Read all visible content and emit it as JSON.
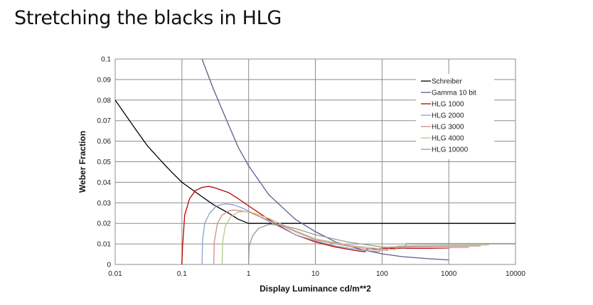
{
  "slide": {
    "title": "Stretching the blacks in HLG"
  },
  "chart_data": {
    "type": "line",
    "title": "",
    "xlabel": "Display Luminance cd/m**2",
    "ylabel": "Weber Fraction",
    "x_scale": "log",
    "xlim": [
      0.01,
      10000
    ],
    "ylim": [
      0,
      0.1
    ],
    "x_ticks": [
      0.01,
      0.1,
      1,
      10,
      100,
      1000,
      10000
    ],
    "x_tick_labels": [
      "0.01",
      "0.1",
      "1",
      "10",
      "100",
      "1000",
      "10000"
    ],
    "y_ticks": [
      0,
      0.01,
      0.02,
      0.03,
      0.04,
      0.05,
      0.06,
      0.07,
      0.08,
      0.09,
      0.1
    ],
    "y_tick_labels": [
      "0",
      "0.01",
      "0.02",
      "0.03",
      "0.04",
      "0.05",
      "0.06",
      "0.07",
      "0.08",
      "0.09",
      "0.1"
    ],
    "grid": true,
    "legend_position": "top-right",
    "series": [
      {
        "name": "Schreiber",
        "color": "#000000",
        "points": [
          [
            0.01,
            0.08
          ],
          [
            0.02,
            0.066
          ],
          [
            0.03,
            0.058
          ],
          [
            0.05,
            0.05
          ],
          [
            0.07,
            0.045
          ],
          [
            0.1,
            0.04
          ],
          [
            0.2,
            0.033
          ],
          [
            0.3,
            0.029
          ],
          [
            0.5,
            0.025
          ],
          [
            0.7,
            0.022
          ],
          [
            1,
            0.02
          ],
          [
            1.5,
            0.02
          ],
          [
            10,
            0.02
          ],
          [
            100,
            0.02
          ],
          [
            1000,
            0.02
          ],
          [
            10000,
            0.02
          ]
        ]
      },
      {
        "name": "Gamma 10 bit",
        "color": "#605a8c",
        "points": [
          [
            0.2,
            0.1
          ],
          [
            0.3,
            0.085
          ],
          [
            0.5,
            0.068
          ],
          [
            0.7,
            0.057
          ],
          [
            1,
            0.048
          ],
          [
            2,
            0.034
          ],
          [
            5,
            0.022
          ],
          [
            10,
            0.016
          ],
          [
            20,
            0.011
          ],
          [
            50,
            0.0072
          ],
          [
            100,
            0.0052
          ],
          [
            200,
            0.0038
          ],
          [
            500,
            0.0028
          ],
          [
            1000,
            0.0022
          ]
        ]
      },
      {
        "name": "HLG 1000",
        "color": "#c00000",
        "points": [
          [
            0.1,
            0
          ],
          [
            0.102,
            0.008
          ],
          [
            0.11,
            0.024
          ],
          [
            0.13,
            0.032
          ],
          [
            0.16,
            0.036
          ],
          [
            0.2,
            0.0375
          ],
          [
            0.25,
            0.038
          ],
          [
            0.3,
            0.0375
          ],
          [
            0.5,
            0.035
          ],
          [
            0.7,
            0.032
          ],
          [
            1,
            0.0285
          ],
          [
            2,
            0.022
          ],
          [
            3,
            0.0185
          ],
          [
            5,
            0.0145
          ],
          [
            10,
            0.011
          ],
          [
            20,
            0.0085
          ],
          [
            40,
            0.0068
          ],
          [
            55,
            0.0062
          ],
          [
            60,
            0.0075
          ],
          [
            100,
            0.0078
          ],
          [
            200,
            0.0079
          ],
          [
            500,
            0.0079
          ],
          [
            1000,
            0.008
          ]
        ]
      },
      {
        "name": "HLG 2000",
        "color": "#8aa0cc",
        "points": [
          [
            0.2,
            0
          ],
          [
            0.204,
            0.012
          ],
          [
            0.22,
            0.02
          ],
          [
            0.26,
            0.025
          ],
          [
            0.33,
            0.0285
          ],
          [
            0.45,
            0.0295
          ],
          [
            0.6,
            0.029
          ],
          [
            0.8,
            0.0275
          ],
          [
            1,
            0.026
          ],
          [
            2,
            0.021
          ],
          [
            5,
            0.0145
          ],
          [
            10,
            0.0115
          ],
          [
            20,
            0.009
          ],
          [
            50,
            0.007
          ],
          [
            90,
            0.0062
          ],
          [
            100,
            0.0082
          ],
          [
            200,
            0.0082
          ],
          [
            500,
            0.0082
          ],
          [
            1000,
            0.0082
          ],
          [
            2000,
            0.0083
          ]
        ]
      },
      {
        "name": "HLG 3000",
        "color": "#d48a8a",
        "points": [
          [
            0.3,
            0
          ],
          [
            0.306,
            0.011
          ],
          [
            0.34,
            0.02
          ],
          [
            0.4,
            0.024
          ],
          [
            0.5,
            0.026
          ],
          [
            0.6,
            0.0265
          ],
          [
            0.8,
            0.026
          ],
          [
            1,
            0.0255
          ],
          [
            2,
            0.0215
          ],
          [
            5,
            0.016
          ],
          [
            10,
            0.012
          ],
          [
            30,
            0.009
          ],
          [
            80,
            0.0072
          ],
          [
            120,
            0.0068
          ],
          [
            130,
            0.0085
          ],
          [
            300,
            0.0088
          ],
          [
            1000,
            0.0089
          ],
          [
            3000,
            0.009
          ]
        ]
      },
      {
        "name": "HLG 4000",
        "color": "#b8c888",
        "points": [
          [
            0.4,
            0
          ],
          [
            0.408,
            0.011
          ],
          [
            0.45,
            0.019
          ],
          [
            0.55,
            0.0235
          ],
          [
            0.7,
            0.0255
          ],
          [
            0.9,
            0.0258
          ],
          [
            1.2,
            0.025
          ],
          [
            2,
            0.0225
          ],
          [
            5,
            0.0165
          ],
          [
            10,
            0.0125
          ],
          [
            30,
            0.0095
          ],
          [
            100,
            0.0075
          ],
          [
            160,
            0.0072
          ],
          [
            170,
            0.009
          ],
          [
            400,
            0.0093
          ],
          [
            1000,
            0.0094
          ],
          [
            4000,
            0.0095
          ]
        ]
      },
      {
        "name": "HLG 10000",
        "color": "#999999",
        "points": [
          [
            1,
            0
          ],
          [
            1.02,
            0.009
          ],
          [
            1.15,
            0.014
          ],
          [
            1.4,
            0.0175
          ],
          [
            2,
            0.0195
          ],
          [
            3,
            0.0192
          ],
          [
            5,
            0.0175
          ],
          [
            10,
            0.0145
          ],
          [
            30,
            0.011
          ],
          [
            100,
            0.0085
          ],
          [
            220,
            0.008
          ],
          [
            230,
            0.0102
          ],
          [
            500,
            0.0102
          ],
          [
            1000,
            0.0102
          ],
          [
            3000,
            0.0102
          ],
          [
            10000,
            0.0102
          ]
        ]
      }
    ]
  }
}
